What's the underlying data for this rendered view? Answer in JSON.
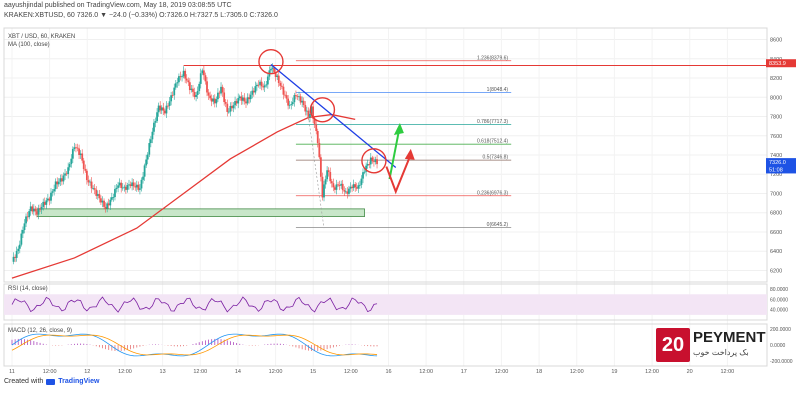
{
  "header": {
    "line1": "aayushjindal published on TradingView.com, May 18, 2019 03:08:55 UTC",
    "line2": "KRAKEN:XBTUSD, 60  7326.0 ▼ −24.0 (−0.33%) O:7326.0 H:7327.5 L:7305.0 C:7326.0"
  },
  "chart_data": {
    "type": "candlestick",
    "symbol": "XBT / USD, 60, KRAKEN",
    "indicator_label": "MA (100, close)",
    "y_ticks": [
      6200,
      6400,
      6600,
      6800,
      7000,
      7200,
      7400,
      7600,
      7800,
      8000,
      8200,
      8400,
      8600
    ],
    "x_ticks": [
      "11",
      "12:00",
      "12",
      "12:00",
      "13",
      "12:00",
      "14",
      "12:00",
      "15",
      "12:00",
      "16",
      "12:00",
      "17",
      "12:00",
      "18",
      "12:00",
      "19",
      "12:00",
      "20",
      "12:00"
    ],
    "ylim": [
      6080,
      8720
    ],
    "price_path": [
      [
        0,
        6290
      ],
      [
        4,
        6420
      ],
      [
        8,
        6700
      ],
      [
        12,
        6850
      ],
      [
        16,
        6800
      ],
      [
        20,
        6890
      ],
      [
        24,
        6950
      ],
      [
        28,
        7100
      ],
      [
        32,
        7150
      ],
      [
        36,
        7250
      ],
      [
        40,
        7500
      ],
      [
        44,
        7400
      ],
      [
        48,
        7150
      ],
      [
        52,
        7050
      ],
      [
        56,
        6950
      ],
      [
        60,
        6850
      ],
      [
        64,
        6950
      ],
      [
        68,
        7100
      ],
      [
        72,
        7050
      ],
      [
        76,
        7100
      ],
      [
        82,
        7050
      ],
      [
        86,
        7350
      ],
      [
        90,
        7650
      ],
      [
        94,
        7900
      ],
      [
        98,
        7850
      ],
      [
        102,
        8000
      ],
      [
        106,
        8180
      ],
      [
        110,
        8250
      ],
      [
        114,
        8100
      ],
      [
        118,
        8000
      ],
      [
        122,
        8300
      ],
      [
        126,
        8000
      ],
      [
        130,
        7950
      ],
      [
        134,
        8100
      ],
      [
        138,
        7850
      ],
      [
        142,
        7920
      ],
      [
        146,
        8000
      ],
      [
        150,
        7950
      ],
      [
        154,
        8050
      ],
      [
        158,
        8150
      ],
      [
        162,
        8100
      ],
      [
        166,
        8320
      ],
      [
        170,
        8200
      ],
      [
        174,
        8050
      ],
      [
        178,
        7900
      ],
      [
        182,
        8030
      ],
      [
        186,
        7950
      ],
      [
        190,
        7800
      ],
      [
        192,
        7880
      ],
      [
        196,
        7550
      ],
      [
        199,
        6980
      ],
      [
        202,
        7250
      ],
      [
        206,
        7050
      ],
      [
        210,
        7100
      ],
      [
        214,
        7000
      ],
      [
        218,
        7080
      ],
      [
        222,
        7060
      ],
      [
        226,
        7250
      ],
      [
        230,
        7350
      ],
      [
        234,
        7326
      ]
    ],
    "ma_path": [
      [
        0,
        6120
      ],
      [
        40,
        6330
      ],
      [
        80,
        6640
      ],
      [
        110,
        7000
      ],
      [
        140,
        7360
      ],
      [
        170,
        7640
      ],
      [
        190,
        7790
      ],
      [
        205,
        7820
      ],
      [
        220,
        7770
      ]
    ],
    "fib_levels": [
      {
        "label": "1.236(8379.6)",
        "value": 8379.6,
        "color": "#ef5350"
      },
      {
        "label": "1(8048.4)",
        "value": 8048.4,
        "color": "#4c8bf5"
      },
      {
        "label": "0.786(7717.3)",
        "value": 7717.3,
        "color": "#26a69a"
      },
      {
        "label": "0.618(7512.4)",
        "value": 7512.4,
        "color": "#4caf50"
      },
      {
        "label": "0.5(7346.8)",
        "value": 7346.8,
        "color": "#8d6e63"
      },
      {
        "label": "0.236(6976.3)",
        "value": 6976.3,
        "color": "#ef5350"
      },
      {
        "label": "0(6645.2)",
        "value": 6645.2,
        "color": "#888888"
      }
    ],
    "resistance_level": 8330,
    "support_zone": [
      6760,
      6840
    ],
    "price_labels": [
      {
        "text": "8353.9",
        "value": 8353.9,
        "bg": "#e53935"
      },
      {
        "text": "7326.0",
        "value": 7326.0,
        "bg": "#1e53e5"
      },
      {
        "text": "51:08",
        "value": 7250,
        "bg": "#1e53e5"
      }
    ],
    "rsi": {
      "label": "RSI (14, close)",
      "ticks": [
        "80.0000",
        "60.0000",
        "40.0000"
      ],
      "tick_values": [
        80,
        60,
        40
      ],
      "band": [
        30,
        70
      ],
      "last": 53
    },
    "macd": {
      "label": "MACD (12, 26, close, 9)",
      "ticks": [
        "200.0000",
        "0.0000",
        "-200.0000"
      ],
      "tick_values": [
        200,
        0,
        -200
      ]
    }
  },
  "watermark": {
    "number": "20",
    "title": "PEYMENT",
    "subtitle": "بک پرداخت خوب"
  },
  "footer": {
    "created_with": "Created with",
    "brand": "TradingView"
  }
}
